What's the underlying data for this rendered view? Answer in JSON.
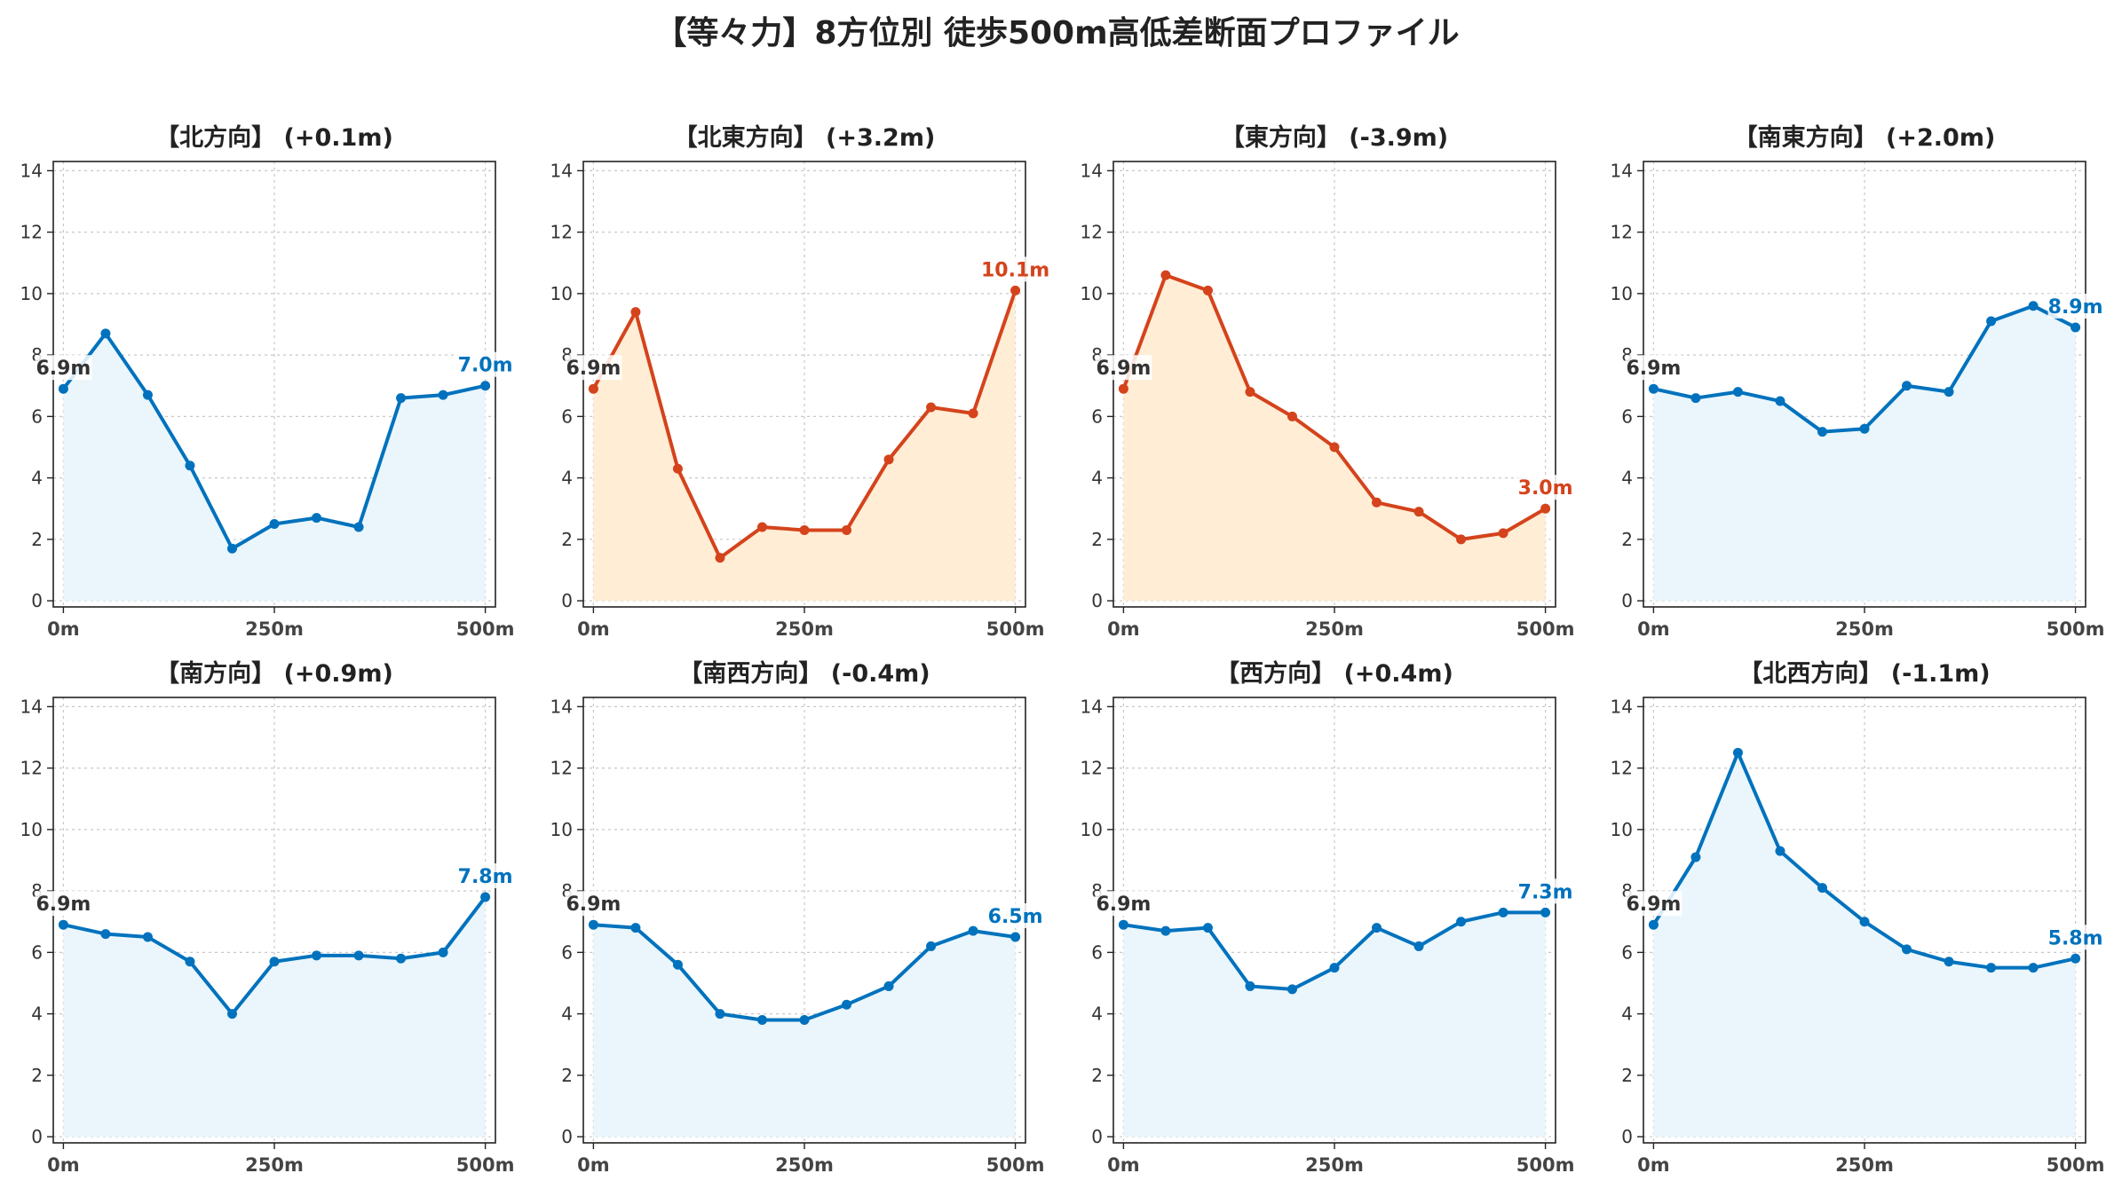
{
  "figure": {
    "title": "【等々力】8方位別 徒歩500m高低差断面プロファイル"
  },
  "colors": {
    "rise": "#0072bd",
    "rise_fill": "#eaf6fc",
    "fall": "#d4431c",
    "fall_fill": "#ffedd5",
    "start_label": "#333333",
    "grid": "#c8c8c8",
    "axis": "#222222"
  },
  "chart_data": [
    {
      "type": "area",
      "title": "【北方向】 (+0.1m)",
      "style": "blue",
      "x": [
        0,
        50,
        100,
        150,
        200,
        250,
        300,
        350,
        400,
        450,
        500
      ],
      "values": [
        6.9,
        8.7,
        6.7,
        4.4,
        1.7,
        2.5,
        2.7,
        2.4,
        6.6,
        6.7,
        7.0
      ],
      "start_label": "6.9m",
      "end_label": "7.0m",
      "xticks": [
        0,
        250,
        500
      ],
      "xtick_labels": [
        "0m",
        "250m",
        "500m"
      ],
      "yticks": [
        0,
        2,
        4,
        6,
        8,
        10,
        12,
        14
      ],
      "ytick_labels": [
        "0",
        "2",
        "4",
        "6",
        "8",
        "10",
        "12",
        "14"
      ],
      "ylim": [
        -0.2,
        14.3
      ],
      "xlim": [
        -12,
        512
      ],
      "grid": true
    },
    {
      "type": "area",
      "title": "【北東方向】 (+3.2m)",
      "style": "orange",
      "x": [
        0,
        50,
        100,
        150,
        200,
        250,
        300,
        350,
        400,
        450,
        500
      ],
      "values": [
        6.9,
        9.4,
        4.3,
        1.4,
        2.4,
        2.3,
        2.3,
        4.6,
        6.3,
        6.1,
        10.1
      ],
      "start_label": "6.9m",
      "end_label": "10.1m",
      "xticks": [
        0,
        250,
        500
      ],
      "xtick_labels": [
        "0m",
        "250m",
        "500m"
      ],
      "yticks": [
        0,
        2,
        4,
        6,
        8,
        10,
        12,
        14
      ],
      "ytick_labels": [
        "0",
        "2",
        "4",
        "6",
        "8",
        "10",
        "12",
        "14"
      ],
      "ylim": [
        -0.2,
        14.3
      ],
      "xlim": [
        -12,
        512
      ],
      "grid": true
    },
    {
      "type": "area",
      "title": "【東方向】 (-3.9m)",
      "style": "orange",
      "x": [
        0,
        50,
        100,
        150,
        200,
        250,
        300,
        350,
        400,
        450,
        500
      ],
      "values": [
        6.9,
        10.6,
        10.1,
        6.8,
        6.0,
        5.0,
        3.2,
        2.9,
        2.0,
        2.2,
        3.0
      ],
      "start_label": "6.9m",
      "end_label": "3.0m",
      "xticks": [
        0,
        250,
        500
      ],
      "xtick_labels": [
        "0m",
        "250m",
        "500m"
      ],
      "yticks": [
        0,
        2,
        4,
        6,
        8,
        10,
        12,
        14
      ],
      "ytick_labels": [
        "0",
        "2",
        "4",
        "6",
        "8",
        "10",
        "12",
        "14"
      ],
      "ylim": [
        -0.2,
        14.3
      ],
      "xlim": [
        -12,
        512
      ],
      "grid": true
    },
    {
      "type": "area",
      "title": "【南東方向】 (+2.0m)",
      "style": "blue",
      "x": [
        0,
        50,
        100,
        150,
        200,
        250,
        300,
        350,
        400,
        450,
        500
      ],
      "values": [
        6.9,
        6.6,
        6.8,
        6.5,
        5.5,
        5.6,
        7.0,
        6.8,
        9.1,
        9.6,
        8.9
      ],
      "start_label": "6.9m",
      "end_label": "8.9m",
      "xticks": [
        0,
        250,
        500
      ],
      "xtick_labels": [
        "0m",
        "250m",
        "500m"
      ],
      "yticks": [
        0,
        2,
        4,
        6,
        8,
        10,
        12,
        14
      ],
      "ytick_labels": [
        "0",
        "2",
        "4",
        "6",
        "8",
        "10",
        "12",
        "14"
      ],
      "ylim": [
        -0.2,
        14.3
      ],
      "xlim": [
        -12,
        512
      ],
      "grid": true
    },
    {
      "type": "area",
      "title": "【南方向】 (+0.9m)",
      "style": "blue",
      "x": [
        0,
        50,
        100,
        150,
        200,
        250,
        300,
        350,
        400,
        450,
        500
      ],
      "values": [
        6.9,
        6.6,
        6.5,
        5.7,
        4.0,
        5.7,
        5.9,
        5.9,
        5.8,
        6.0,
        7.8
      ],
      "start_label": "6.9m",
      "end_label": "7.8m",
      "xticks": [
        0,
        250,
        500
      ],
      "xtick_labels": [
        "0m",
        "250m",
        "500m"
      ],
      "yticks": [
        0,
        2,
        4,
        6,
        8,
        10,
        12,
        14
      ],
      "ytick_labels": [
        "0",
        "2",
        "4",
        "6",
        "8",
        "10",
        "12",
        "14"
      ],
      "ylim": [
        -0.2,
        14.3
      ],
      "xlim": [
        -12,
        512
      ],
      "grid": true
    },
    {
      "type": "area",
      "title": "【南西方向】 (-0.4m)",
      "style": "blue",
      "x": [
        0,
        50,
        100,
        150,
        200,
        250,
        300,
        350,
        400,
        450,
        500
      ],
      "values": [
        6.9,
        6.8,
        5.6,
        4.0,
        3.8,
        3.8,
        4.3,
        4.9,
        6.2,
        6.7,
        6.5
      ],
      "start_label": "6.9m",
      "end_label": "6.5m",
      "xticks": [
        0,
        250,
        500
      ],
      "xtick_labels": [
        "0m",
        "250m",
        "500m"
      ],
      "yticks": [
        0,
        2,
        4,
        6,
        8,
        10,
        12,
        14
      ],
      "ytick_labels": [
        "0",
        "2",
        "4",
        "6",
        "8",
        "10",
        "12",
        "14"
      ],
      "ylim": [
        -0.2,
        14.3
      ],
      "xlim": [
        -12,
        512
      ],
      "grid": true
    },
    {
      "type": "area",
      "title": "【西方向】 (+0.4m)",
      "style": "blue",
      "x": [
        0,
        50,
        100,
        150,
        200,
        250,
        300,
        350,
        400,
        450,
        500
      ],
      "values": [
        6.9,
        6.7,
        6.8,
        4.9,
        4.8,
        5.5,
        6.8,
        6.2,
        7.0,
        7.3,
        7.3
      ],
      "start_label": "6.9m",
      "end_label": "7.3m",
      "xticks": [
        0,
        250,
        500
      ],
      "xtick_labels": [
        "0m",
        "250m",
        "500m"
      ],
      "yticks": [
        0,
        2,
        4,
        6,
        8,
        10,
        12,
        14
      ],
      "ytick_labels": [
        "0",
        "2",
        "4",
        "6",
        "8",
        "10",
        "12",
        "14"
      ],
      "ylim": [
        -0.2,
        14.3
      ],
      "xlim": [
        -12,
        512
      ],
      "grid": true
    },
    {
      "type": "area",
      "title": "【北西方向】 (-1.1m)",
      "style": "blue",
      "x": [
        0,
        50,
        100,
        150,
        200,
        250,
        300,
        350,
        400,
        450,
        500
      ],
      "values": [
        6.9,
        9.1,
        12.5,
        9.3,
        8.1,
        7.0,
        6.1,
        5.7,
        5.5,
        5.5,
        5.8
      ],
      "start_label": "6.9m",
      "end_label": "5.8m",
      "xticks": [
        0,
        250,
        500
      ],
      "xtick_labels": [
        "0m",
        "250m",
        "500m"
      ],
      "yticks": [
        0,
        2,
        4,
        6,
        8,
        10,
        12,
        14
      ],
      "ytick_labels": [
        "0",
        "2",
        "4",
        "6",
        "8",
        "10",
        "12",
        "14"
      ],
      "ylim": [
        -0.2,
        14.3
      ],
      "xlim": [
        -12,
        512
      ],
      "grid": true
    }
  ]
}
